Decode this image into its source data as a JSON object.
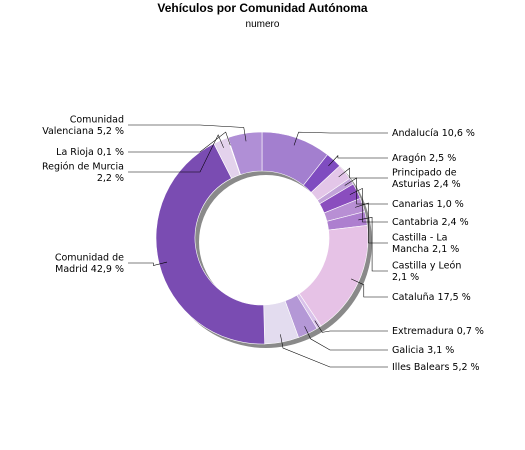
{
  "chart_data": {
    "type": "pie",
    "style": "donut",
    "title": "Vehículos por Comunidad Autónoma",
    "subtitle": "numero",
    "series": [
      {
        "name": "",
        "slices": [
          {
            "label": [
              "Andalucía 10,6 %"
            ],
            "value": 10.6,
            "color": "#a37fcf",
            "side": "right"
          },
          {
            "label": [
              "Aragón 2,5 %"
            ],
            "value": 2.5,
            "color": "#7f4cc0",
            "side": "right"
          },
          {
            "label": [
              "Principado de",
              "Asturias 2,4 %"
            ],
            "value": 2.4,
            "color": "#e3c6e8",
            "side": "right"
          },
          {
            "label": [
              "Canarias 1,0 %"
            ],
            "value": 1.0,
            "color": "#c2a3d9",
            "side": "right"
          },
          {
            "label": [
              "Cantabria 2,4 %"
            ],
            "value": 2.4,
            "color": "#8a4dbe",
            "side": "right"
          },
          {
            "label": [
              "Castilla - La",
              "Mancha 2,1 %"
            ],
            "value": 2.1,
            "color": "#b88fd4",
            "side": "right"
          },
          {
            "label": [
              "Castilla y León",
              "2,1 %"
            ],
            "value": 2.1,
            "color": "#ad7fcf",
            "side": "right"
          },
          {
            "label": [
              "Cataluña 17,5 %"
            ],
            "value": 17.5,
            "color": "#e6c2e6",
            "side": "right"
          },
          {
            "label": [
              "Extremadura 0,7 %"
            ],
            "value": 0.7,
            "color": "#d9c2ea",
            "side": "right"
          },
          {
            "label": [
              "Galicia 3,1 %"
            ],
            "value": 3.1,
            "color": "#b498d6",
            "side": "right"
          },
          {
            "label": [
              "Illes Balears 5,2 %"
            ],
            "value": 5.2,
            "color": "#e3dcef",
            "side": "right"
          },
          {
            "label": [
              "Comunidad de",
              "Madrid 42,9 %"
            ],
            "value": 42.9,
            "color": "#7a4cb2",
            "side": "left"
          },
          {
            "label": [
              "Región de Murcia",
              "2,2 %"
            ],
            "value": 2.2,
            "color": "#e3d2ec",
            "side": "left"
          },
          {
            "label": [
              "La Rioja 0,1 %"
            ],
            "value": 0.1,
            "color": "#8d6cc3",
            "side": "left"
          },
          {
            "label": [
              "Comunidad",
              "Valenciana 5,2 %"
            ],
            "value": 5.2,
            "color": "#b08fd6",
            "side": "left"
          }
        ]
      }
    ],
    "legend": "none"
  }
}
